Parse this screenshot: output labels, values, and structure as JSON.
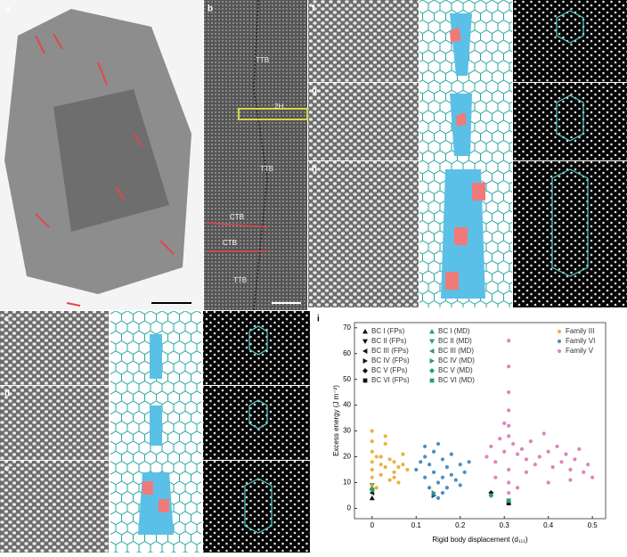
{
  "panels": [
    "a",
    "b",
    "c",
    "d",
    "e",
    "f",
    "g",
    "h",
    "i"
  ],
  "labels_b": [
    "TTB",
    "2H",
    "TTB",
    "CTB",
    "CTB",
    "TTB"
  ],
  "chart_data": {
    "type": "scatter",
    "xlabel": "Rigid body displacement (d₁₁₁)",
    "ylabel": "Excess energy (J m⁻²)",
    "xlim": [
      -0.04,
      0.53
    ],
    "ylim": [
      -4,
      72
    ],
    "xticks": [
      0,
      0.1,
      0.2,
      0.3,
      0.4,
      0.5
    ],
    "yticks": [
      0,
      10,
      20,
      30,
      40,
      50,
      60,
      70
    ],
    "series": [
      {
        "name": "BC I (FPs)",
        "color": "#111111",
        "marker": "triangle-up",
        "x": [
          0
        ],
        "values": [
          4
        ]
      },
      {
        "name": "BC II (FPs)",
        "color": "#111111",
        "marker": "triangle-down",
        "x": [
          0
        ],
        "values": [
          7
        ]
      },
      {
        "name": "BC III (FPs)",
        "color": "#111111",
        "marker": "triangle-left",
        "x": [
          0
        ],
        "values": [
          6
        ]
      },
      {
        "name": "BC IV (FPs)",
        "color": "#111111",
        "marker": "triangle-right",
        "x": [
          0.14
        ],
        "values": [
          5
        ]
      },
      {
        "name": "BC V (FPs)",
        "color": "#111111",
        "marker": "diamond",
        "x": [
          0.27
        ],
        "values": [
          6
        ]
      },
      {
        "name": "BC VI (FPs)",
        "color": "#111111",
        "marker": "square",
        "x": [
          0.31
        ],
        "values": [
          2
        ]
      },
      {
        "name": "BC I (MD)",
        "color": "#2a9d6e",
        "marker": "triangle-up",
        "x": [
          0
        ],
        "values": [
          8
        ]
      },
      {
        "name": "BC II (MD)",
        "color": "#2a9d6e",
        "marker": "triangle-down",
        "x": [
          0
        ],
        "values": [
          9
        ]
      },
      {
        "name": "BC III (MD)",
        "color": "#2a9d6e",
        "marker": "triangle-left",
        "x": [
          0
        ],
        "values": [
          7
        ]
      },
      {
        "name": "BC IV (MD)",
        "color": "#2a9d6e",
        "marker": "triangle-right",
        "x": [
          0.14
        ],
        "values": [
          6
        ]
      },
      {
        "name": "BC V (MD)",
        "color": "#2a9d6e",
        "marker": "diamond",
        "x": [
          0.27
        ],
        "values": [
          5
        ]
      },
      {
        "name": "BC VI (MD)",
        "color": "#2a9d6e",
        "marker": "square",
        "x": [
          0.31
        ],
        "values": [
          3
        ]
      },
      {
        "name": "Family III",
        "color": "#e8a51c",
        "marker": "circle",
        "x": [
          0,
          0,
          0,
          0,
          0,
          0,
          0,
          0.01,
          0.02,
          0.02,
          0.03,
          0.03,
          0.04,
          0.04,
          0.05,
          0.05,
          0.06,
          0.06,
          0.07,
          0.07,
          0.08,
          0.01,
          0.03,
          0.05,
          0.02
        ],
        "values": [
          30,
          26,
          22,
          18,
          15,
          12,
          9,
          20,
          17,
          13,
          25,
          16,
          19,
          11,
          18,
          14,
          16,
          10,
          17,
          21,
          15,
          8,
          28,
          12,
          20
        ]
      },
      {
        "name": "Family VI",
        "color": "#2b7bb9",
        "marker": "circle",
        "x": [
          0.1,
          0.11,
          0.12,
          0.12,
          0.13,
          0.13,
          0.14,
          0.14,
          0.15,
          0.15,
          0.16,
          0.16,
          0.17,
          0.18,
          0.18,
          0.19,
          0.2,
          0.2,
          0.21,
          0.22,
          0.14,
          0.15,
          0.16,
          0.12,
          0.17
        ],
        "values": [
          15,
          18,
          12,
          20,
          17,
          8,
          22,
          14,
          25,
          10,
          19,
          6,
          16,
          13,
          21,
          11,
          17,
          9,
          14,
          18,
          5,
          4,
          12,
          24,
          8
        ]
      },
      {
        "name": "Family V",
        "color": "#d670b0",
        "marker": "circle",
        "x": [
          0.26,
          0.27,
          0.28,
          0.29,
          0.3,
          0.31,
          0.31,
          0.31,
          0.31,
          0.31,
          0.31,
          0.31,
          0.31,
          0.31,
          0.32,
          0.33,
          0.34,
          0.35,
          0.36,
          0.37,
          0.38,
          0.39,
          0.4,
          0.41,
          0.42,
          0.43,
          0.44,
          0.45,
          0.46,
          0.47,
          0.48,
          0.49,
          0.5,
          0.28,
          0.35,
          0.4,
          0.45,
          0.3,
          0.33
        ],
        "values": [
          20,
          24,
          18,
          27,
          22,
          65,
          55,
          45,
          38,
          32,
          28,
          15,
          10,
          6,
          25,
          21,
          23,
          19,
          26,
          17,
          20,
          29,
          22,
          16,
          24,
          18,
          21,
          15,
          19,
          23,
          14,
          17,
          12,
          12,
          14,
          10,
          11,
          33,
          8
        ]
      }
    ]
  }
}
